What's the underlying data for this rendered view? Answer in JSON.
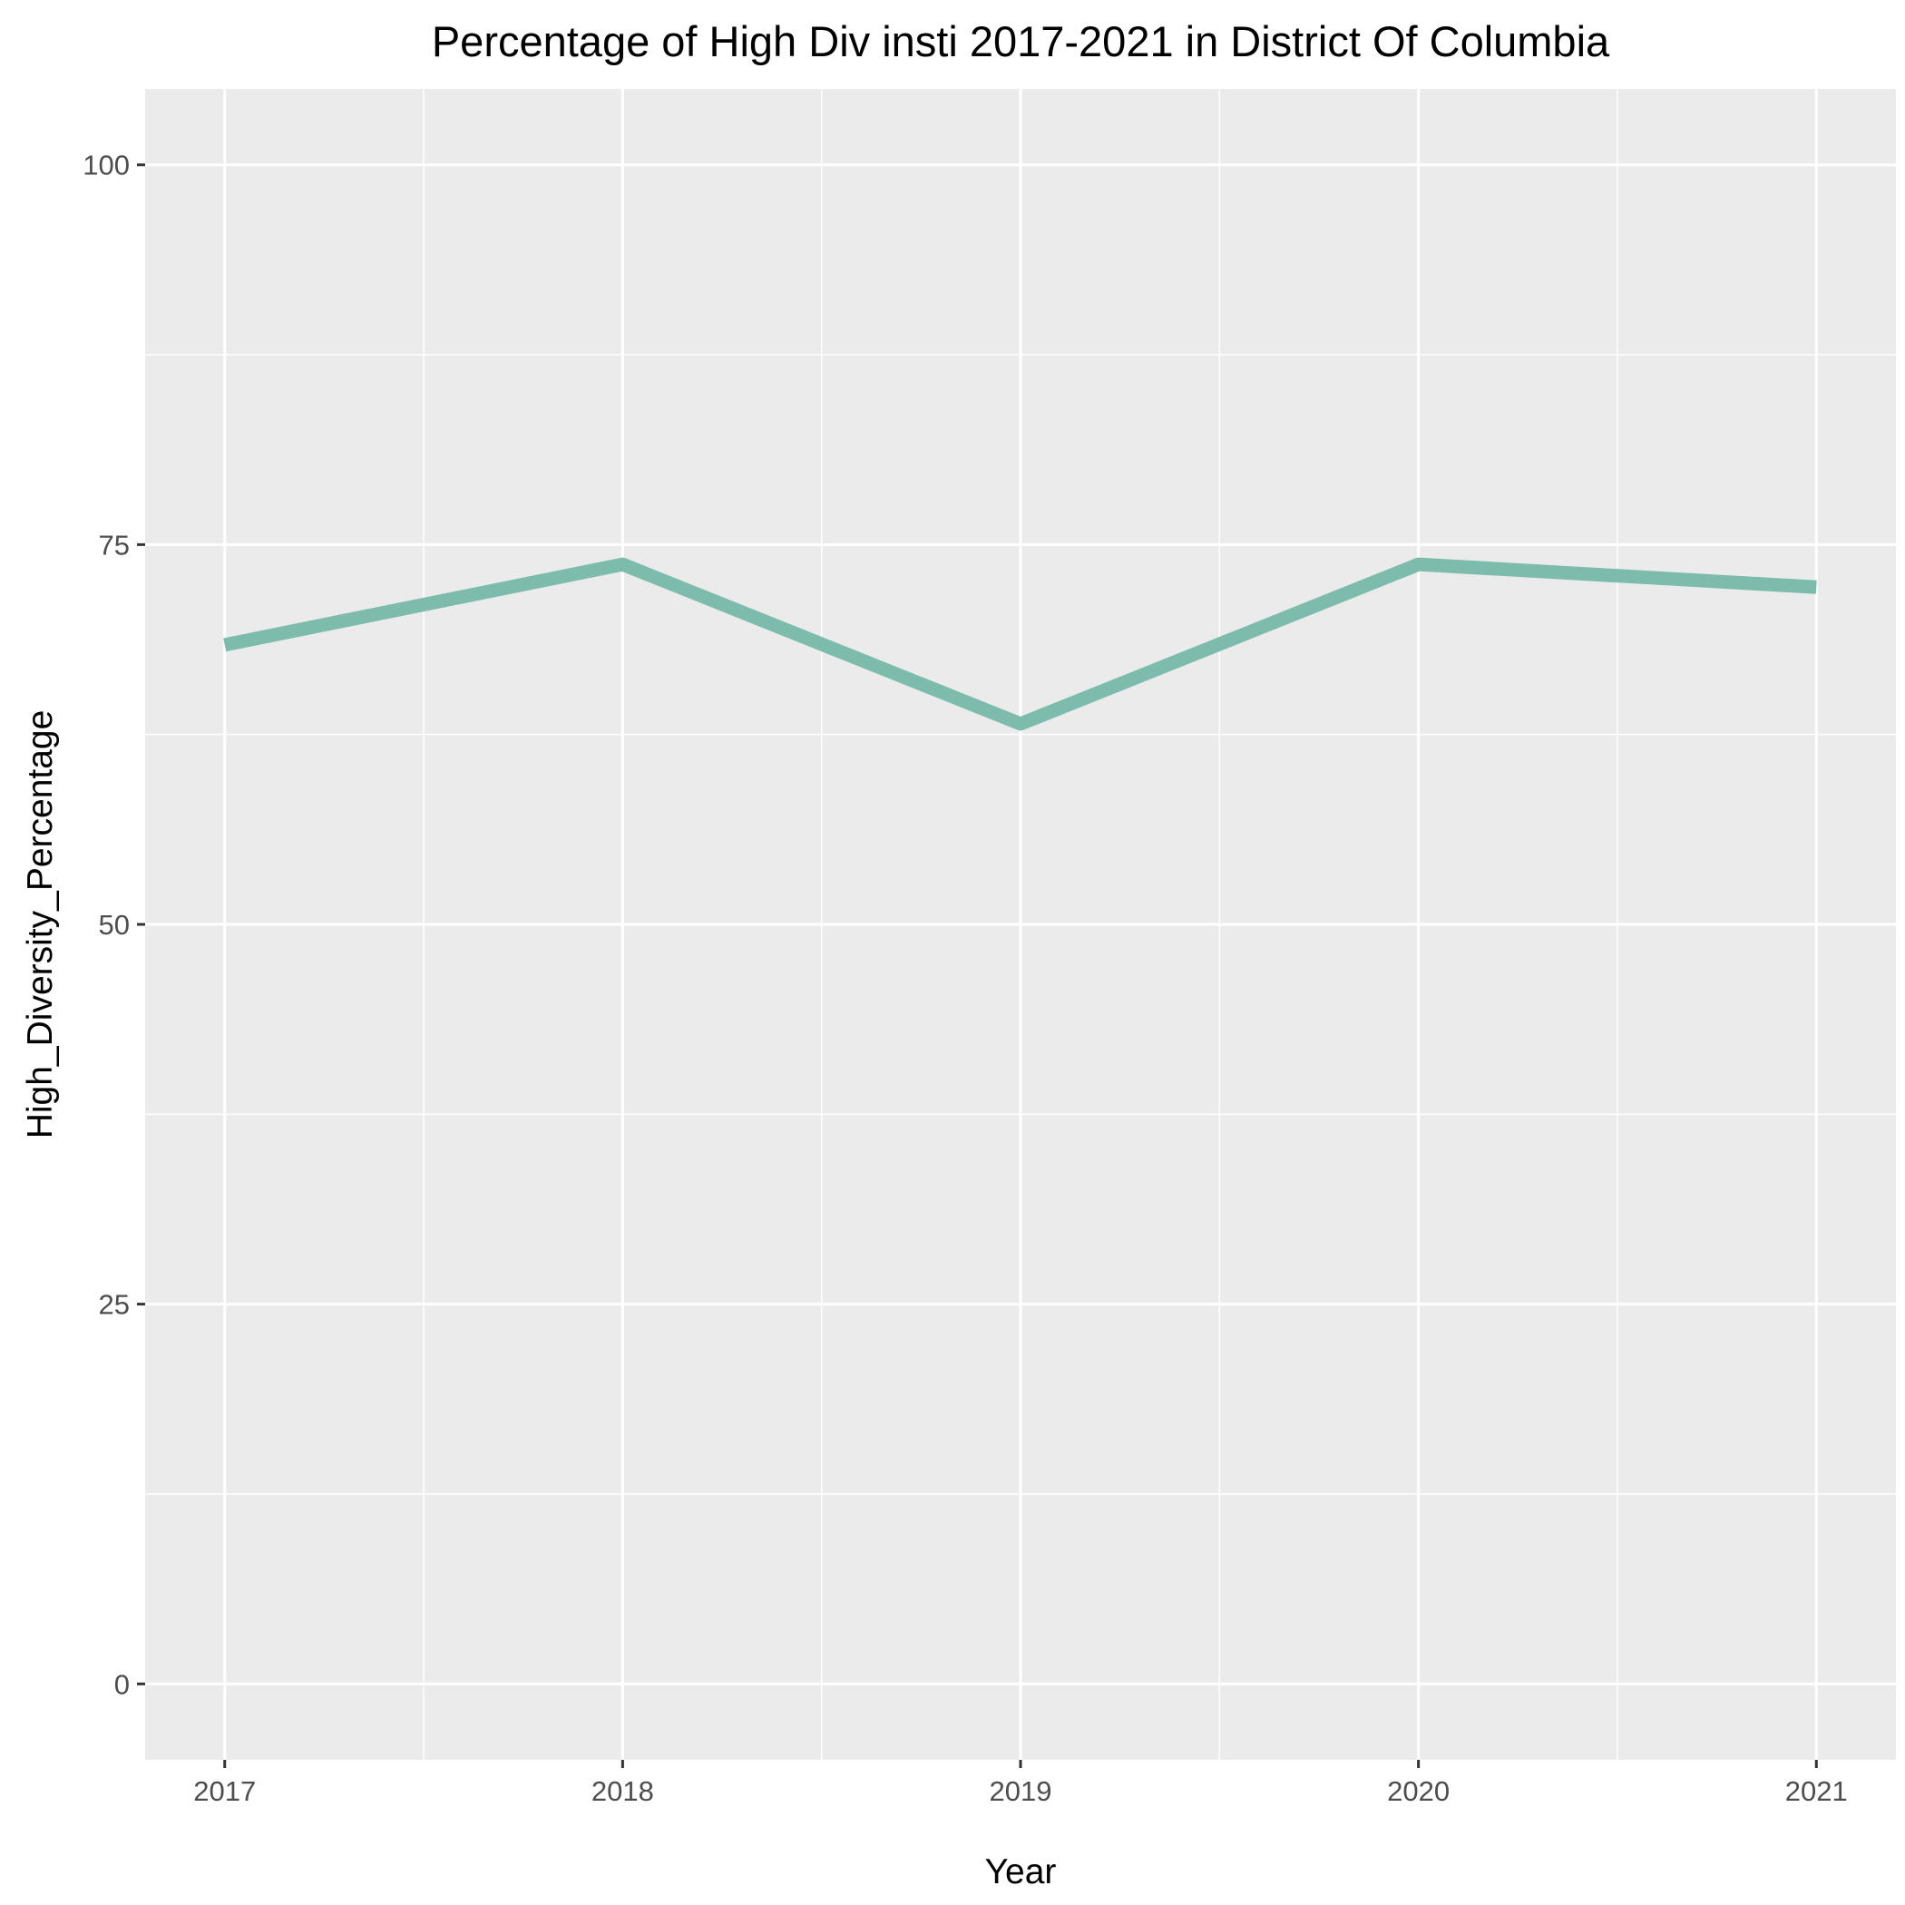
{
  "chart_data": {
    "type": "line",
    "title": "Percentage of High Div insti 2017-2021 in District Of Columbia",
    "xlabel": "Year",
    "ylabel": "High_Diversity_Percentage",
    "x": [
      2017,
      2018,
      2019,
      2020,
      2021
    ],
    "x_tick_labels": [
      "2017",
      "2018",
      "2019",
      "2020",
      "2021"
    ],
    "y_ticks": [
      0,
      25,
      50,
      75,
      100
    ],
    "y_tick_labels": [
      "0",
      "25",
      "50",
      "75",
      "100"
    ],
    "xlim": [
      2016.8,
      2021.2
    ],
    "ylim": [
      -5,
      105
    ],
    "grid": true,
    "legend": "none",
    "series": [
      {
        "values": [
          68.4,
          73.7,
          63.2,
          73.7,
          72.2
        ]
      }
    ],
    "colors": {
      "line": "#7dbcad",
      "panel_background": "#ebebeb",
      "grid_major": "#ffffff",
      "grid_minor": "#ffffff",
      "tick_text": "#4d4d4d",
      "axis_ticks": "#333333",
      "title_text": "#000000"
    }
  }
}
